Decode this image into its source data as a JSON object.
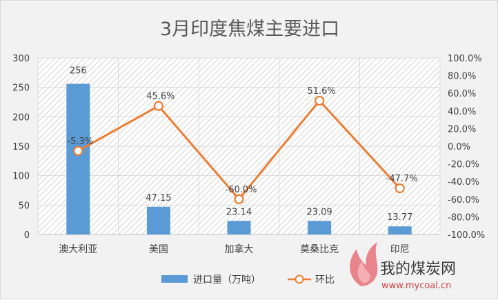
{
  "chart_data": {
    "type": "bar+line",
    "title": "3月印度焦煤主要进口",
    "categories": [
      "澳大利亚",
      "美国",
      "加拿大",
      "莫桑比克",
      "印尼"
    ],
    "series": [
      {
        "name": "进口量（万吨）",
        "type": "bar",
        "axis": "left",
        "values": [
          256,
          47.15,
          23.14,
          23.09,
          13.77
        ],
        "labels": [
          "256",
          "47.15",
          "23.14",
          "23.09",
          "13.77"
        ],
        "color": "#5b9bd5"
      },
      {
        "name": "环比",
        "type": "line",
        "axis": "right",
        "values": [
          -5.3,
          45.6,
          -60.0,
          51.6,
          -47.7
        ],
        "labels": [
          "-5.3%",
          "45.6%",
          "-60.0%",
          "51.6%",
          "-47.7%"
        ],
        "color": "#ed7d31"
      }
    ],
    "left_axis": {
      "min": 0,
      "max": 300,
      "ticks": [
        0,
        50,
        100,
        150,
        200,
        250,
        300
      ],
      "tick_labels": [
        "0",
        "50",
        "100",
        "150",
        "200",
        "250",
        "300"
      ]
    },
    "right_axis": {
      "min": -100,
      "max": 100,
      "ticks": [
        -100,
        -80,
        -60,
        -40,
        -20,
        0,
        20,
        40,
        60,
        80,
        100
      ],
      "tick_labels": [
        "-100.0%",
        "-80.0%",
        "-60.0%",
        "-40.0%",
        "-20.0%",
        "0.0%",
        "20.0%",
        "40.0%",
        "60.0%",
        "80.0%",
        "100.0%"
      ]
    },
    "grid": true,
    "legend_position": "bottom"
  },
  "watermark": {
    "brand_text": "我的煤炭网",
    "url_text": "www.mycoal.cn"
  }
}
